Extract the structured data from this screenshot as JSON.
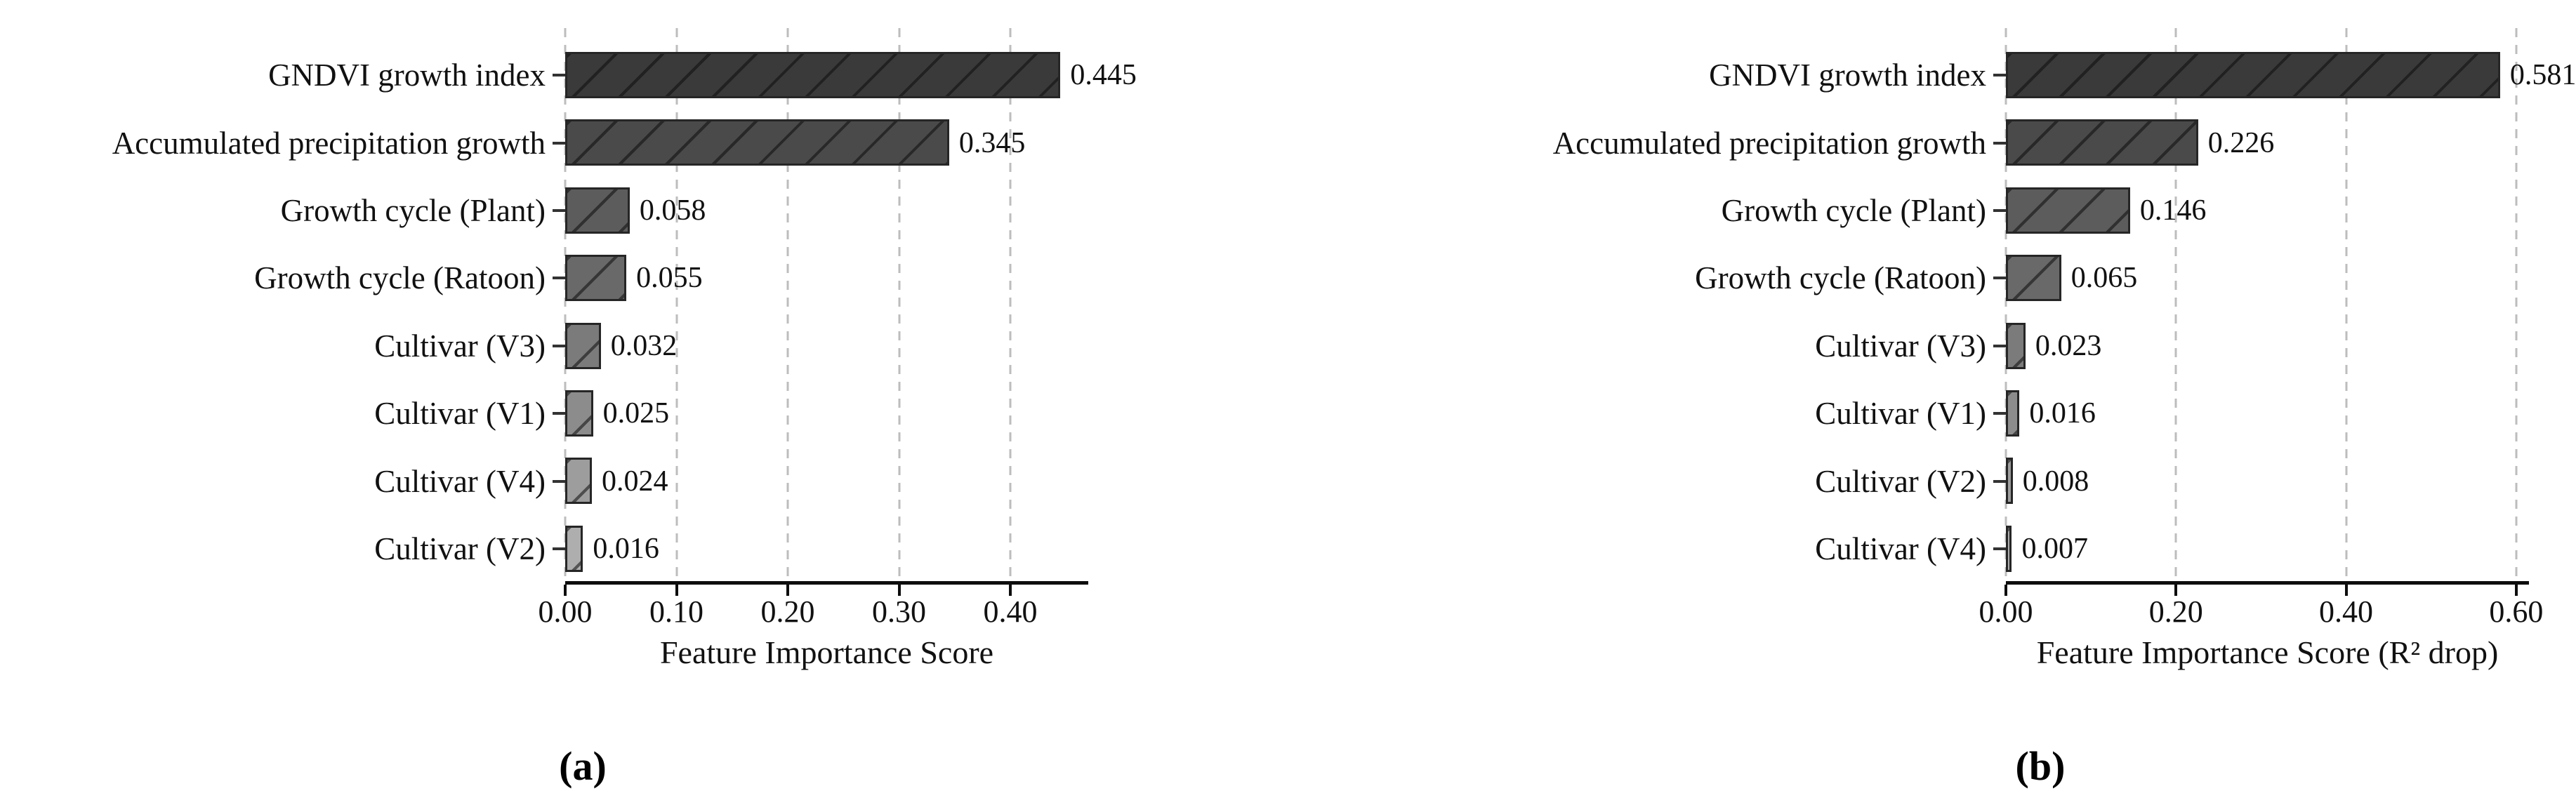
{
  "figure": {
    "background": "#ffffff",
    "grid_color": "#bdbdbd",
    "axis_color": "#0d0d0d",
    "hatch_pattern": "/"
  },
  "chart_data": [
    {
      "type": "bar",
      "orientation": "horizontal",
      "caption": "(a)",
      "xlabel": "Feature Importance Score",
      "ylabel": "",
      "categories": [
        "GNDVI growth index",
        "Accumulated precipitation growth",
        "Growth cycle (Plant)",
        "Growth cycle (Ratoon)",
        "Cultivar (V3)",
        "Cultivar (V1)",
        "Cultivar (V4)",
        "Cultivar (V2)"
      ],
      "values": [
        0.445,
        0.345,
        0.058,
        0.055,
        0.032,
        0.025,
        0.024,
        0.016
      ],
      "value_labels": [
        "0.445",
        "0.345",
        "0.058",
        "0.055",
        "0.032",
        "0.025",
        "0.024",
        "0.016"
      ],
      "bar_colors": [
        "#3a3a3a",
        "#4a4a4a",
        "#5c5c5c",
        "#696969",
        "#7b7b7b",
        "#8c8c8c",
        "#9d9d9d",
        "#aeaeae"
      ],
      "xlim": [
        0,
        0.47
      ],
      "x_ticks": [
        {
          "value": 0.0,
          "label": "0.00"
        },
        {
          "value": 0.1,
          "label": "0.10"
        },
        {
          "value": 0.2,
          "label": "0.20"
        },
        {
          "value": 0.3,
          "label": "0.30"
        },
        {
          "value": 0.4,
          "label": "0.40"
        }
      ],
      "grid": "vertical-dashed",
      "legend": null,
      "hatch": "/"
    },
    {
      "type": "bar",
      "orientation": "horizontal",
      "caption": "(b)",
      "xlabel": "Feature Importance Score (R² drop)",
      "ylabel": "",
      "categories": [
        "GNDVI growth index",
        "Accumulated precipitation growth",
        "Growth cycle (Plant)",
        "Growth cycle (Ratoon)",
        "Cultivar (V3)",
        "Cultivar (V1)",
        "Cultivar (V2)",
        "Cultivar (V4)"
      ],
      "values": [
        0.581,
        0.226,
        0.146,
        0.065,
        0.023,
        0.016,
        0.008,
        0.007
      ],
      "value_labels": [
        "0.581",
        "0.226",
        "0.146",
        "0.065",
        "0.023",
        "0.016",
        "0.008",
        "0.007"
      ],
      "bar_colors": [
        "#3a3a3a",
        "#4a4a4a",
        "#5c5c5c",
        "#696969",
        "#7b7b7b",
        "#8c8c8c",
        "#9d9d9d",
        "#aeaeae"
      ],
      "xlim": [
        0,
        0.615
      ],
      "x_ticks": [
        {
          "value": 0.0,
          "label": "0.00"
        },
        {
          "value": 0.2,
          "label": "0.20"
        },
        {
          "value": 0.4,
          "label": "0.40"
        },
        {
          "value": 0.6,
          "label": "0.60"
        }
      ],
      "grid": "vertical-dashed",
      "legend": null,
      "hatch": "/"
    }
  ]
}
